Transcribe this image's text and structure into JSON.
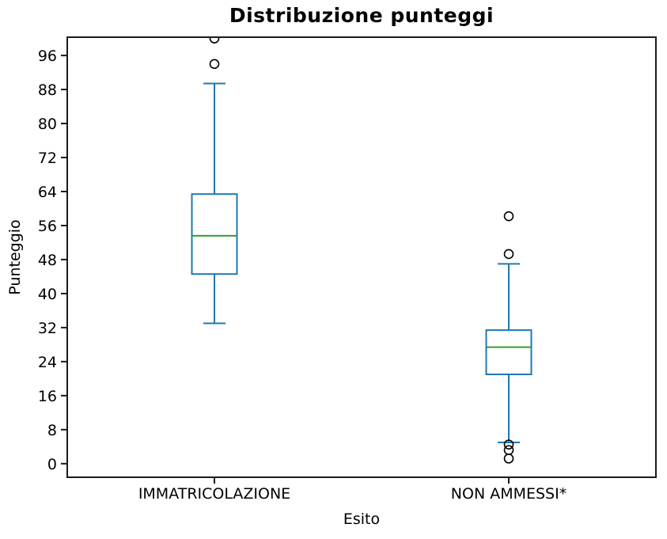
{
  "figure": {
    "background": "#ffffff"
  },
  "chart_data": {
    "type": "boxplot",
    "title": "Distribuzione punteggi",
    "xlabel": "Esito",
    "ylabel": "Punteggio",
    "categories": [
      "IMMATRICOLAZIONE",
      "NON AMMESSI*"
    ],
    "yticks": [
      0,
      8,
      16,
      24,
      32,
      40,
      48,
      56,
      64,
      72,
      80,
      88,
      96
    ],
    "ylim": [
      -3.2,
      100.3
    ],
    "grid": false,
    "legend": null,
    "boxes": [
      {
        "label": "IMMATRICOLAZIONE",
        "whislo": 33,
        "q1": 44.6,
        "med": 53.6,
        "q3": 63.4,
        "whishi": 89.4,
        "fliers": [
          94,
          100
        ]
      },
      {
        "label": "NON AMMESSI*",
        "whislo": 5,
        "q1": 21,
        "med": 27.4,
        "q3": 31.4,
        "whishi": 47,
        "fliers": [
          49.3,
          58.2,
          4.5,
          3.2,
          1.2
        ]
      }
    ],
    "colors": {
      "box": "#1f77b4",
      "median": "#2ca02c",
      "flier_edge": "#000000",
      "axis": "#1a1a1a",
      "text": "#000000"
    }
  }
}
